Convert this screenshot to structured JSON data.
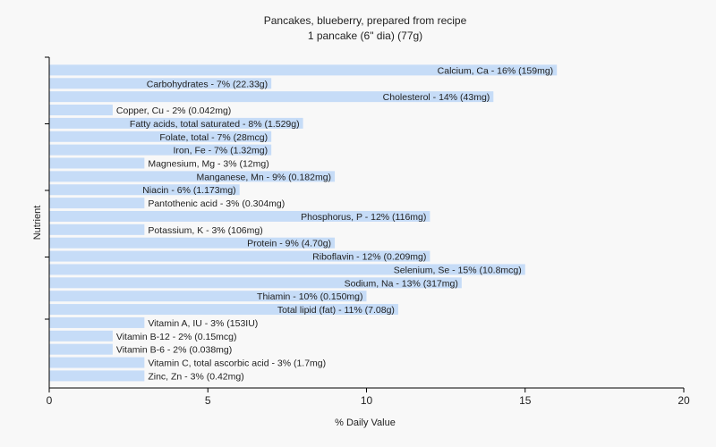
{
  "chart_data": {
    "type": "bar",
    "orientation": "horizontal",
    "title": "Pancakes, blueberry, prepared from recipe",
    "subtitle": "1 pancake (6\" dia) (77g)",
    "xlabel": "% Daily Value",
    "ylabel": "Nutrient",
    "xlim": [
      0,
      20
    ],
    "xticks": [
      "0",
      "5",
      "10",
      "15",
      "20"
    ],
    "grid": false,
    "bar_color": "#c6dcf7",
    "categories": [
      "Calcium, Ca - 16% (159mg)",
      "Carbohydrates - 7% (22.33g)",
      "Cholesterol - 14% (43mg)",
      "Copper, Cu - 2% (0.042mg)",
      "Fatty acids, total saturated - 8% (1.529g)",
      "Folate, total - 7% (28mcg)",
      "Iron, Fe - 7% (1.32mg)",
      "Magnesium, Mg - 3% (12mg)",
      "Manganese, Mn - 9% (0.182mg)",
      "Niacin - 6% (1.173mg)",
      "Pantothenic acid - 3% (0.304mg)",
      "Phosphorus, P - 12% (116mg)",
      "Potassium, K - 3% (106mg)",
      "Protein - 9% (4.70g)",
      "Riboflavin - 12% (0.209mg)",
      "Selenium, Se - 15% (10.8mcg)",
      "Sodium, Na - 13% (317mg)",
      "Thiamin - 10% (0.150mg)",
      "Total lipid (fat) - 11% (7.08g)",
      "Vitamin A, IU - 3% (153IU)",
      "Vitamin B-12 - 2% (0.15mcg)",
      "Vitamin B-6 - 2% (0.038mg)",
      "Vitamin C, total ascorbic acid - 3% (1.7mg)",
      "Zinc, Zn - 3% (0.42mg)"
    ],
    "values": [
      16,
      7,
      14,
      2,
      8,
      7,
      7,
      3,
      9,
      6,
      3,
      12,
      3,
      9,
      12,
      15,
      13,
      10,
      11,
      3,
      2,
      2,
      3,
      3
    ]
  }
}
